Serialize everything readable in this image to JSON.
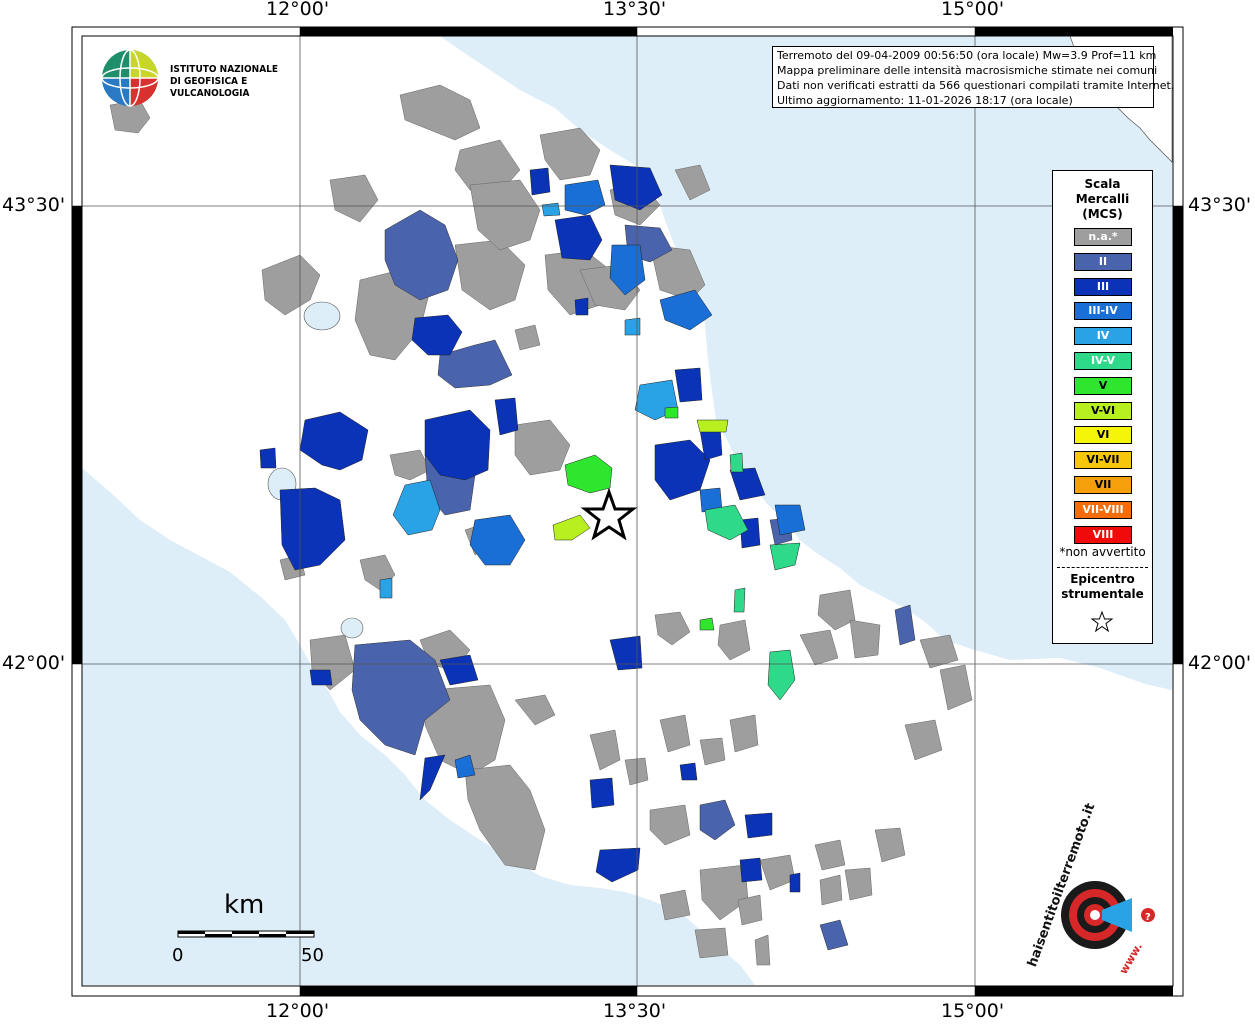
{
  "map": {
    "top_labels": [
      "12°00'",
      "13°30'",
      "15°00'"
    ],
    "bottom_labels": [
      "12°00'",
      "13°30'",
      "15°00'"
    ],
    "left_labels": [
      "43°30'",
      "42°00'"
    ],
    "right_labels": [
      "43°30'",
      "42°00'"
    ],
    "colors": {
      "sea": "#ddeef9",
      "land": "#ffffff",
      "na": "#9e9e9e",
      "II": "#4a63ad",
      "III": "#0a33b8",
      "III_IV": "#1a6fd6",
      "IV": "#2aa3e6",
      "IV_V": "#2fd98a",
      "V": "#2ee62e",
      "V_VI": "#b8f01f"
    }
  },
  "logo": {
    "line1": "ISTITUTO NAZIONALE",
    "line2": "DI GEOFISICA E VULCANOLOGIA"
  },
  "info": {
    "line1": "Terremoto del 09-04-2009 00:56:50 (ora locale) Mw=3.9 Prof=11 km",
    "line2": "Mappa preliminare delle intensità macrosismiche stimate nei comuni",
    "line3": "Dati non verificati estratti da 566 questionari compilati tramite Internet.",
    "line4": "Ultimo aggiornamento: 11-01-2026 18:17 (ora locale)"
  },
  "legend": {
    "title1": "Scala",
    "title2": "Mercalli",
    "title3": "(MCS)",
    "items": [
      {
        "label": "n.a.*",
        "color": "#9e9e9e"
      },
      {
        "label": "II",
        "color": "#4a63ad"
      },
      {
        "label": "III",
        "color": "#0a33b8"
      },
      {
        "label": "III-IV",
        "color": "#1a6fd6"
      },
      {
        "label": "IV",
        "color": "#2aa3e6"
      },
      {
        "label": "IV-V",
        "color": "#2fd98a"
      },
      {
        "label": "V",
        "color": "#2ee62e"
      },
      {
        "label": "V-VI",
        "color": "#b8f01f"
      },
      {
        "label": "VI",
        "color": "#f5f50a"
      },
      {
        "label": "VI-VII",
        "color": "#f5c60a"
      },
      {
        "label": "VII",
        "color": "#f5a00a"
      },
      {
        "label": "VII-VIII",
        "color": "#f56d0a"
      },
      {
        "label": "VIII",
        "color": "#f00a0a"
      }
    ],
    "note": "*non avvertito",
    "epi1": "Epicentro",
    "epi2": "strumentale"
  },
  "scalebar": {
    "unit": "km",
    "start": "0",
    "end": "50"
  },
  "badge": {
    "text": "haisentitoilterremoto.it",
    "url": "www."
  }
}
